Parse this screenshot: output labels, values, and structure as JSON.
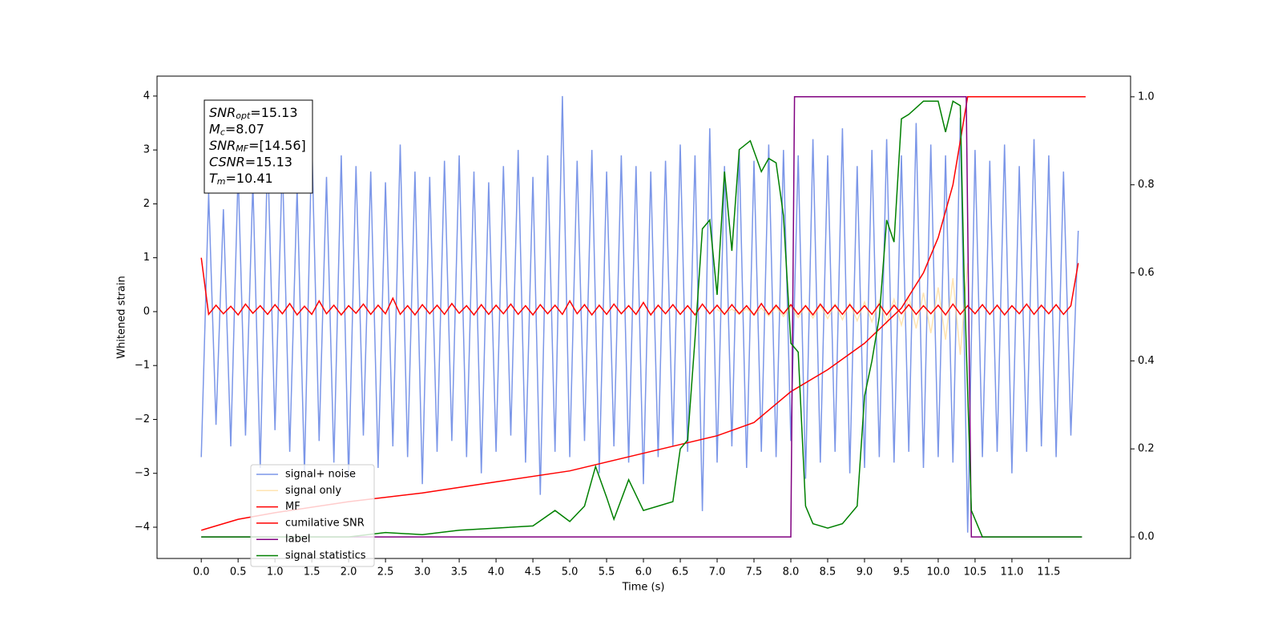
{
  "chart_data": {
    "type": "line",
    "xlabel": "Time (s)",
    "ylabel": "Whitened strain",
    "xlim": [
      -0.6,
      12.61
    ],
    "ylim": [
      -4.58,
      4.37
    ],
    "y2lim": [
      -0.049,
      1.047
    ],
    "xticks": [
      {
        "value": 0,
        "label": "0.0"
      },
      0.5,
      {
        "value": 1,
        "label": "1.0"
      },
      1.5,
      {
        "value": 2,
        "label": "2.0"
      },
      2.5,
      {
        "value": 3,
        "label": "3.0"
      },
      3.5,
      {
        "value": 4,
        "label": "4.0"
      },
      4.5,
      {
        "value": 5,
        "label": "5.0"
      },
      5.5,
      {
        "value": 6,
        "label": "6.0"
      },
      6.5,
      {
        "value": 7,
        "label": "7.0"
      },
      7.5,
      {
        "value": 8,
        "label": "8.0"
      },
      8.5,
      {
        "value": 9,
        "label": "9.0"
      },
      9.5,
      {
        "value": 10,
        "label": "10.0"
      },
      10.5,
      {
        "value": 11,
        "label": "11.0"
      },
      11.5
    ],
    "yticks": [
      {
        "value": -4,
        "label": "−4"
      },
      {
        "value": -3,
        "label": "−3"
      },
      {
        "value": -2,
        "label": "−2"
      },
      {
        "value": -1,
        "label": "−1"
      },
      0,
      1,
      2,
      3,
      4
    ],
    "y2ticks": [
      {
        "value": 0,
        "label": "0.0"
      },
      0.2,
      0.4,
      0.6,
      0.8,
      {
        "value": 1,
        "label": "1.0"
      }
    ],
    "legend": "lower left",
    "annotations": [
      {
        "symbol": "SNR",
        "subscript": "opt",
        "text": "=15.13"
      },
      {
        "symbol": "M",
        "subscript": "c",
        "text": "=8.07"
      },
      {
        "symbol": "SNR",
        "subscript": "MF",
        "text": "=[14.56]"
      },
      {
        "symbol": "CSNR",
        "text": "=15.13"
      },
      {
        "symbol": "T",
        "subscript": "m",
        "text": "=10.41"
      }
    ],
    "series": [
      {
        "name": "signal+ noise",
        "color": "#7b96e8",
        "x": [
          0,
          0.1,
          0.2,
          0.3,
          0.4,
          0.5,
          0.6,
          0.7,
          0.8,
          0.9,
          1,
          1.1,
          1.2,
          1.3,
          1.4,
          1.5,
          1.6,
          1.7,
          1.8,
          1.9,
          2,
          2.1,
          2.2,
          2.3,
          2.4,
          2.5,
          2.6,
          2.7,
          2.8,
          2.9,
          3,
          3.1,
          3.2,
          3.3,
          3.4,
          3.5,
          3.6,
          3.7,
          3.8,
          3.9,
          4,
          4.1,
          4.2,
          4.3,
          4.4,
          4.5,
          4.6,
          4.7,
          4.8,
          4.9,
          5,
          5.1,
          5.2,
          5.3,
          5.4,
          5.5,
          5.6,
          5.7,
          5.8,
          5.9,
          6,
          6.1,
          6.2,
          6.3,
          6.4,
          6.5,
          6.6,
          6.7,
          6.8,
          6.9,
          7,
          7.1,
          7.2,
          7.3,
          7.4,
          7.5,
          7.6,
          7.7,
          7.8,
          7.9,
          8,
          8.1,
          8.2,
          8.3,
          8.4,
          8.5,
          8.6,
          8.7,
          8.8,
          8.9,
          9,
          9.1,
          9.2,
          9.3,
          9.4,
          9.5,
          9.6,
          9.7,
          9.8,
          9.9,
          10,
          10.1,
          10.2,
          10.3,
          10.4,
          10.5,
          10.6,
          10.7,
          10.8,
          10.9,
          11,
          11.1,
          11.2,
          11.3,
          11.4,
          11.5,
          11.6,
          11.7,
          11.8,
          11.9
        ],
        "values": [
          -2.7,
          2.2,
          -2.1,
          1.9,
          -2.5,
          2.6,
          -2.3,
          2.4,
          -2.9,
          3.0,
          -2.2,
          2.8,
          -2.6,
          2.3,
          -3.0,
          3.2,
          -2.4,
          2.5,
          -2.8,
          2.9,
          -3.1,
          2.7,
          -2.3,
          2.6,
          -2.9,
          2.4,
          -2.5,
          3.1,
          -2.7,
          2.6,
          -3.2,
          2.5,
          -2.6,
          2.8,
          -2.4,
          2.9,
          -2.7,
          2.6,
          -3.0,
          2.4,
          -2.6,
          2.7,
          -2.3,
          3.0,
          -2.8,
          2.5,
          -3.4,
          2.9,
          -2.6,
          4.0,
          -2.7,
          2.8,
          -2.4,
          3.0,
          -3.0,
          2.6,
          -2.5,
          2.9,
          -2.8,
          2.7,
          -3.2,
          2.6,
          -2.7,
          2.8,
          -2.5,
          3.1,
          -2.6,
          2.9,
          -3.7,
          3.4,
          -2.8,
          2.7,
          -2.5,
          3.0,
          -2.9,
          2.8,
          -2.6,
          3.1,
          -2.7,
          3.0,
          -2.4,
          2.9,
          -3.1,
          3.2,
          -2.8,
          2.9,
          -2.6,
          3.4,
          -3.0,
          2.7,
          -2.9,
          3.0,
          -2.7,
          3.2,
          -2.8,
          2.9,
          -2.6,
          3.5,
          -2.9,
          3.1,
          -2.7,
          2.9,
          -2.8,
          3.6,
          -4.1,
          3.0,
          -2.7,
          2.8,
          -2.6,
          3.1,
          -3.0,
          2.7,
          -2.6,
          3.2,
          -2.5,
          2.9,
          -2.7,
          2.6,
          -2.3,
          1.5
        ]
      },
      {
        "name": "signal only",
        "color": "#ffd27f",
        "x": [
          7,
          7.1,
          7.2,
          7.3,
          7.4,
          7.5,
          7.6,
          7.7,
          7.8,
          7.9,
          8,
          8.1,
          8.2,
          8.3,
          8.4,
          8.5,
          8.6,
          8.7,
          8.8,
          8.9,
          9,
          9.1,
          9.2,
          9.3,
          9.4,
          9.5,
          9.6,
          9.7,
          9.8,
          9.9,
          10,
          10.1,
          10.2,
          10.3,
          10.4
        ],
        "values": [
          0.04,
          -0.04,
          0.05,
          -0.05,
          0.06,
          -0.07,
          0.07,
          -0.08,
          0.09,
          -0.09,
          0.1,
          -0.11,
          0.11,
          -0.12,
          0.12,
          -0.13,
          0.14,
          -0.15,
          0.16,
          -0.17,
          0.18,
          -0.19,
          0.2,
          -0.22,
          0.23,
          -0.25,
          0.28,
          -0.31,
          0.35,
          -0.4,
          0.45,
          -0.52,
          0.62,
          -0.8,
          0.9
        ]
      },
      {
        "name": "MF",
        "color": "#ff0000",
        "x": [
          0,
          0.1,
          0.2,
          0.3,
          0.4,
          0.5,
          0.6,
          0.7,
          0.8,
          0.9,
          1,
          1.1,
          1.2,
          1.3,
          1.4,
          1.5,
          1.6,
          1.7,
          1.8,
          1.9,
          2,
          2.1,
          2.2,
          2.3,
          2.4,
          2.5,
          2.6,
          2.7,
          2.8,
          2.9,
          3,
          3.1,
          3.2,
          3.3,
          3.4,
          3.5,
          3.6,
          3.7,
          3.8,
          3.9,
          4,
          4.1,
          4.2,
          4.3,
          4.4,
          4.5,
          4.6,
          4.7,
          4.8,
          4.9,
          5,
          5.1,
          5.2,
          5.3,
          5.4,
          5.5,
          5.6,
          5.7,
          5.8,
          5.9,
          6,
          6.1,
          6.2,
          6.3,
          6.4,
          6.5,
          6.6,
          6.7,
          6.8,
          6.9,
          7,
          7.1,
          7.2,
          7.3,
          7.4,
          7.5,
          7.6,
          7.7,
          7.8,
          7.9,
          8,
          8.1,
          8.2,
          8.3,
          8.4,
          8.5,
          8.6,
          8.7,
          8.8,
          8.9,
          9,
          9.1,
          9.2,
          9.3,
          9.4,
          9.5,
          9.6,
          9.7,
          9.8,
          9.9,
          10,
          10.1,
          10.2,
          10.3,
          10.4,
          10.5,
          10.6,
          10.7,
          10.8,
          10.9,
          11,
          11.1,
          11.2,
          11.3,
          11.4,
          11.5,
          11.6,
          11.7,
          11.8,
          11.9
        ],
        "values": [
          1.0,
          -0.05,
          0.12,
          -0.04,
          0.1,
          -0.06,
          0.14,
          -0.03,
          0.11,
          -0.05,
          0.13,
          -0.04,
          0.15,
          -0.06,
          0.1,
          -0.05,
          0.2,
          -0.04,
          0.12,
          -0.06,
          0.11,
          -0.03,
          0.14,
          -0.05,
          0.12,
          -0.04,
          0.25,
          -0.05,
          0.11,
          -0.06,
          0.13,
          -0.04,
          0.12,
          -0.05,
          0.15,
          -0.03,
          0.11,
          -0.06,
          0.13,
          -0.05,
          0.12,
          -0.04,
          0.14,
          -0.05,
          0.11,
          -0.06,
          0.13,
          -0.04,
          0.12,
          -0.05,
          0.2,
          -0.04,
          0.13,
          -0.06,
          0.12,
          -0.05,
          0.14,
          -0.04,
          0.11,
          -0.05,
          0.17,
          -0.06,
          0.12,
          -0.04,
          0.13,
          -0.05,
          0.11,
          -0.06,
          0.14,
          -0.04,
          0.12,
          -0.05,
          0.13,
          -0.04,
          0.11,
          -0.06,
          0.15,
          -0.05,
          0.12,
          -0.04,
          0.13,
          -0.05,
          0.11,
          -0.06,
          0.14,
          -0.04,
          0.12,
          -0.05,
          0.13,
          -0.04,
          0.11,
          -0.05,
          0.14,
          -0.06,
          0.12,
          -0.04,
          0.13,
          -0.05,
          0.11,
          -0.04,
          0.12,
          -0.06,
          0.14,
          -0.05,
          0.11,
          -0.04,
          0.13,
          -0.05,
          0.12,
          -0.06,
          0.11,
          -0.04,
          0.14,
          -0.05,
          0.12,
          -0.04,
          0.13,
          -0.05,
          0.11,
          0.9
        ]
      },
      {
        "name": "cumilative SNR",
        "color": "#ff0000",
        "axis": "y2",
        "x": [
          0,
          0.5,
          1,
          2,
          3,
          4,
          5,
          6,
          7,
          7.5,
          8,
          8.5,
          9,
          9.5,
          9.8,
          10,
          10.2,
          10.35,
          10.4,
          12
        ],
        "values": [
          0.015,
          0.04,
          0.055,
          0.08,
          0.1,
          0.125,
          0.15,
          0.19,
          0.23,
          0.26,
          0.33,
          0.38,
          0.44,
          0.52,
          0.6,
          0.68,
          0.8,
          0.95,
          1.0,
          1.0
        ]
      },
      {
        "name": "label",
        "color": "#800080",
        "axis": "y2",
        "x": [
          0,
          8.0,
          8.05,
          10.38,
          10.45,
          11.95
        ],
        "values": [
          0,
          0,
          1,
          1,
          0,
          0
        ]
      },
      {
        "name": "signal statistics",
        "color": "#008000",
        "axis": "y2",
        "x": [
          0,
          2,
          2.5,
          3,
          3.5,
          4,
          4.5,
          4.8,
          5,
          5.2,
          5.35,
          5.5,
          5.6,
          5.8,
          6,
          6.2,
          6.4,
          6.5,
          6.6,
          6.7,
          6.8,
          6.9,
          7.0,
          7.1,
          7.2,
          7.3,
          7.45,
          7.6,
          7.7,
          7.8,
          7.9,
          8.0,
          8.1,
          8.2,
          8.3,
          8.5,
          8.7,
          8.9,
          9.0,
          9.1,
          9.2,
          9.3,
          9.4,
          9.5,
          9.6,
          9.8,
          10.0,
          10.1,
          10.2,
          10.3,
          10.35,
          10.45,
          10.6,
          11.95
        ],
        "values": [
          0,
          0,
          0.01,
          0.005,
          0.015,
          0.02,
          0.025,
          0.06,
          0.035,
          0.07,
          0.16,
          0.09,
          0.04,
          0.13,
          0.06,
          0.07,
          0.08,
          0.2,
          0.22,
          0.45,
          0.7,
          0.72,
          0.55,
          0.83,
          0.65,
          0.88,
          0.9,
          0.83,
          0.86,
          0.85,
          0.73,
          0.44,
          0.42,
          0.07,
          0.03,
          0.02,
          0.03,
          0.07,
          0.32,
          0.4,
          0.5,
          0.72,
          0.67,
          0.95,
          0.96,
          0.99,
          0.99,
          0.92,
          0.99,
          0.98,
          0.6,
          0.06,
          0,
          0
        ]
      }
    ]
  }
}
